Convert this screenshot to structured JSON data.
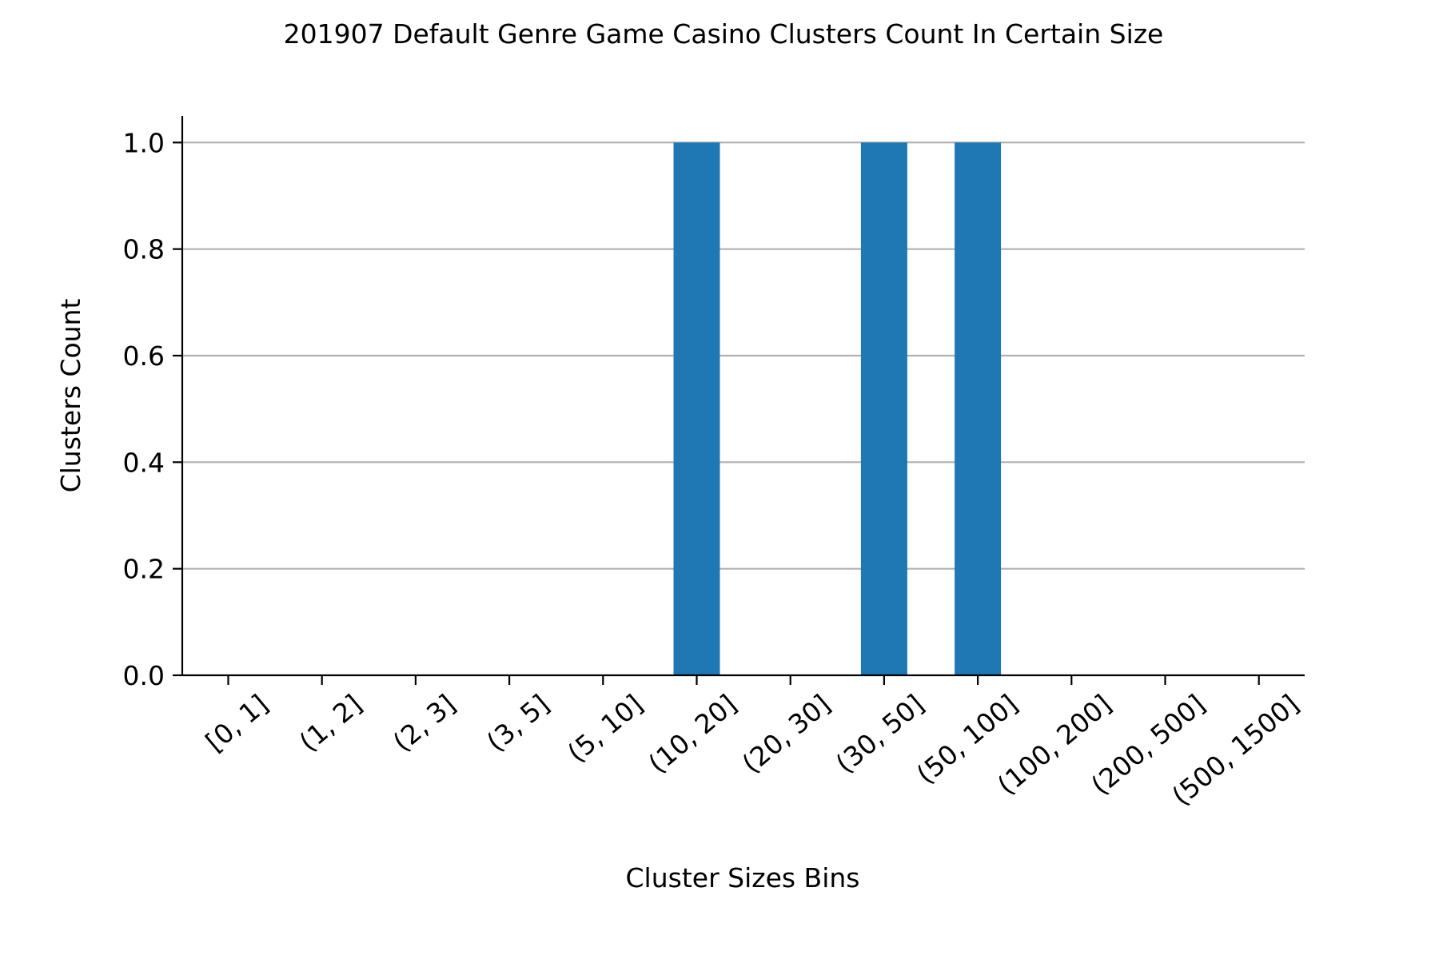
{
  "chart_data": {
    "type": "bar",
    "title": "201907 Default Genre Game Casino Clusters Count In Certain Size",
    "xlabel": "Cluster Sizes Bins",
    "ylabel": "Clusters Count",
    "categories": [
      "[0, 1]",
      "(1, 2]",
      "(2, 3]",
      "(3, 5]",
      "(5, 10]",
      "(10, 20]",
      "(20, 30]",
      "(30, 50]",
      "(50, 100]",
      "(100, 200]",
      "(200, 500]",
      "(500, 1500]"
    ],
    "values": [
      0,
      0,
      0,
      0,
      0,
      1,
      0,
      1,
      1,
      0,
      0,
      0
    ],
    "ylim": [
      0,
      1.05
    ],
    "yticks": [
      "0.0",
      "0.2",
      "0.4",
      "0.6",
      "0.8",
      "1.0"
    ],
    "grid": "horizontal",
    "bar_color": "#1f77b4",
    "grid_color": "#b0b0b0"
  }
}
